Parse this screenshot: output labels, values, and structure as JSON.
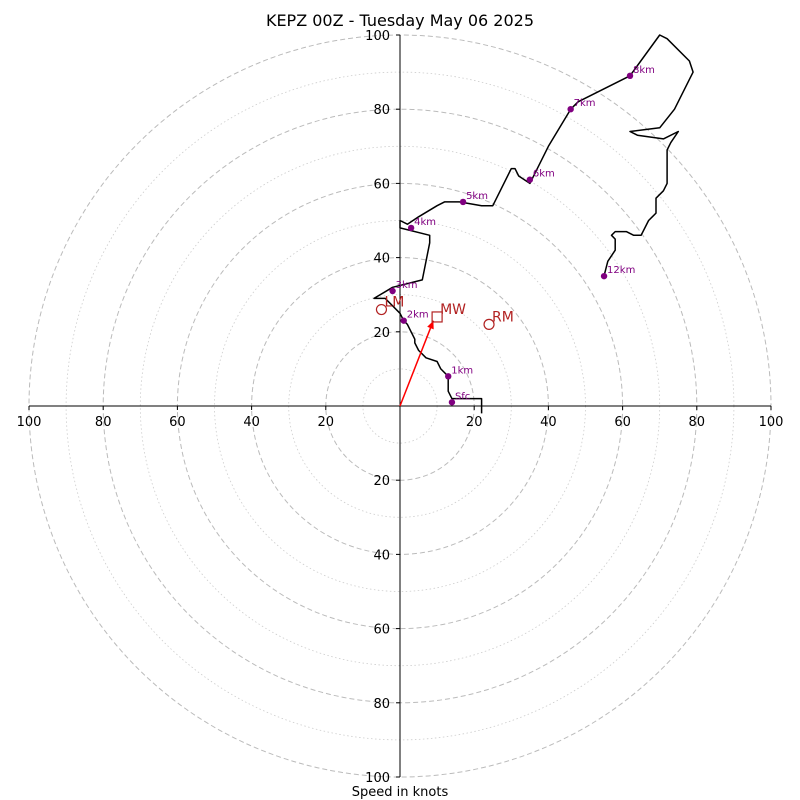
{
  "colors": {
    "hodograph": "#000000",
    "height_marker": "#800080",
    "motion": "#b22222",
    "shear_vector": "#ff0000",
    "ring_major": "#bbbbbb",
    "ring_minor": "#cccccc"
  },
  "chart_data": {
    "type": "hodograph",
    "title": "KEPZ 00Z - Tuesday May 06 2025",
    "xlabel": "Speed in knots",
    "unit": "knots",
    "xlim": [
      -100,
      100
    ],
    "ylim": [
      -100,
      100
    ],
    "ring_major_step": 20,
    "ring_minor_step": 10,
    "x_tick_labels": [
      "100",
      "80",
      "60",
      "40",
      "20",
      "",
      "20",
      "40",
      "60",
      "80",
      "100"
    ],
    "y_tick_labels": [
      "100",
      "80",
      "60",
      "40",
      "20",
      "",
      "20",
      "40",
      "60",
      "80",
      "100"
    ],
    "hodograph": [
      [
        22,
        -2
      ],
      [
        22,
        2
      ],
      [
        20,
        2
      ],
      [
        18,
        2
      ],
      [
        16,
        2
      ],
      [
        14,
        2
      ],
      [
        13,
        4
      ],
      [
        13,
        8
      ],
      [
        11,
        10
      ],
      [
        10,
        12
      ],
      [
        7,
        13
      ],
      [
        5,
        15
      ],
      [
        4,
        17
      ],
      [
        4,
        18
      ],
      [
        3,
        20
      ],
      [
        2,
        22
      ],
      [
        1,
        23
      ],
      [
        0,
        25
      ],
      [
        -4,
        29
      ],
      [
        -7,
        29
      ],
      [
        -2,
        32
      ],
      [
        6,
        34
      ],
      [
        8,
        44
      ],
      [
        8,
        46
      ],
      [
        0,
        48
      ],
      [
        0,
        50
      ],
      [
        2,
        49
      ],
      [
        5,
        51
      ],
      [
        10,
        54
      ],
      [
        12,
        55
      ],
      [
        16,
        55
      ],
      [
        22,
        54
      ],
      [
        25,
        54
      ],
      [
        30,
        64
      ],
      [
        31,
        64
      ],
      [
        32,
        62
      ],
      [
        35,
        60
      ],
      [
        40,
        70
      ],
      [
        46,
        80
      ],
      [
        48,
        82
      ],
      [
        62,
        89
      ],
      [
        70,
        100
      ],
      [
        72,
        99
      ],
      [
        78,
        93
      ],
      [
        79,
        90
      ],
      [
        74,
        80
      ],
      [
        70,
        75
      ],
      [
        62,
        74
      ],
      [
        64,
        73
      ],
      [
        71,
        72
      ],
      [
        75,
        74
      ],
      [
        73,
        71
      ],
      [
        72,
        69
      ],
      [
        72,
        60
      ],
      [
        71,
        58
      ],
      [
        69,
        56
      ],
      [
        69,
        52
      ],
      [
        68,
        51
      ],
      [
        67,
        50
      ],
      [
        65,
        46
      ],
      [
        63,
        46
      ],
      [
        61,
        47
      ],
      [
        58,
        47
      ],
      [
        57,
        46
      ],
      [
        58,
        45
      ],
      [
        58,
        42
      ],
      [
        56,
        39
      ],
      [
        55,
        35
      ]
    ],
    "height_markers": [
      {
        "label": "Sfc",
        "u": 14,
        "v": 1
      },
      {
        "label": "1km",
        "u": 13,
        "v": 8
      },
      {
        "label": "2km",
        "u": 1,
        "v": 23
      },
      {
        "label": "3km",
        "u": -2,
        "v": 31
      },
      {
        "label": "4km",
        "u": 3,
        "v": 48
      },
      {
        "label": "5km",
        "u": 17,
        "v": 55
      },
      {
        "label": "6km",
        "u": 35,
        "v": 61
      },
      {
        "label": "7km",
        "u": 46,
        "v": 80
      },
      {
        "label": "8km",
        "u": 62,
        "v": 89
      },
      {
        "label": "12km",
        "u": 55,
        "v": 35
      }
    ],
    "storm_motions": [
      {
        "label": "LM",
        "u": -5,
        "v": 26,
        "marker": "circle"
      },
      {
        "label": "MW",
        "u": 10,
        "v": 24,
        "marker": "square"
      },
      {
        "label": "RM",
        "u": 24,
        "v": 22,
        "marker": "circle"
      }
    ],
    "shear_vector": {
      "u": 9,
      "v": 23
    }
  }
}
